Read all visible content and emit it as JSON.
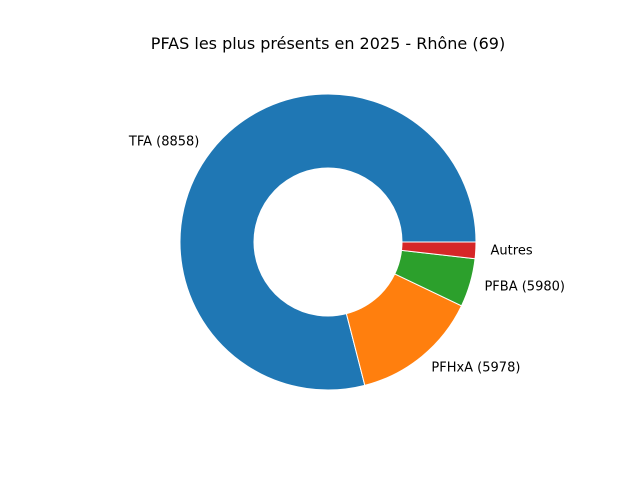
{
  "chart_data": {
    "type": "pie",
    "style": "donut",
    "title": "PFAS les plus présents en 2025 - Rhône (69)",
    "start_angle_deg": 0,
    "direction": "counterclockwise",
    "labels": [
      "TFA (8858)",
      "PFHxA (5978)",
      "PFBA (5980)",
      "Autres"
    ],
    "values": [
      79.0,
      13.9,
      5.3,
      1.8
    ],
    "value_unit": "percent of total (estimated from slice angles)",
    "colors": [
      "#1f77b4",
      "#ff7f0e",
      "#2ca02c",
      "#d62728"
    ]
  }
}
